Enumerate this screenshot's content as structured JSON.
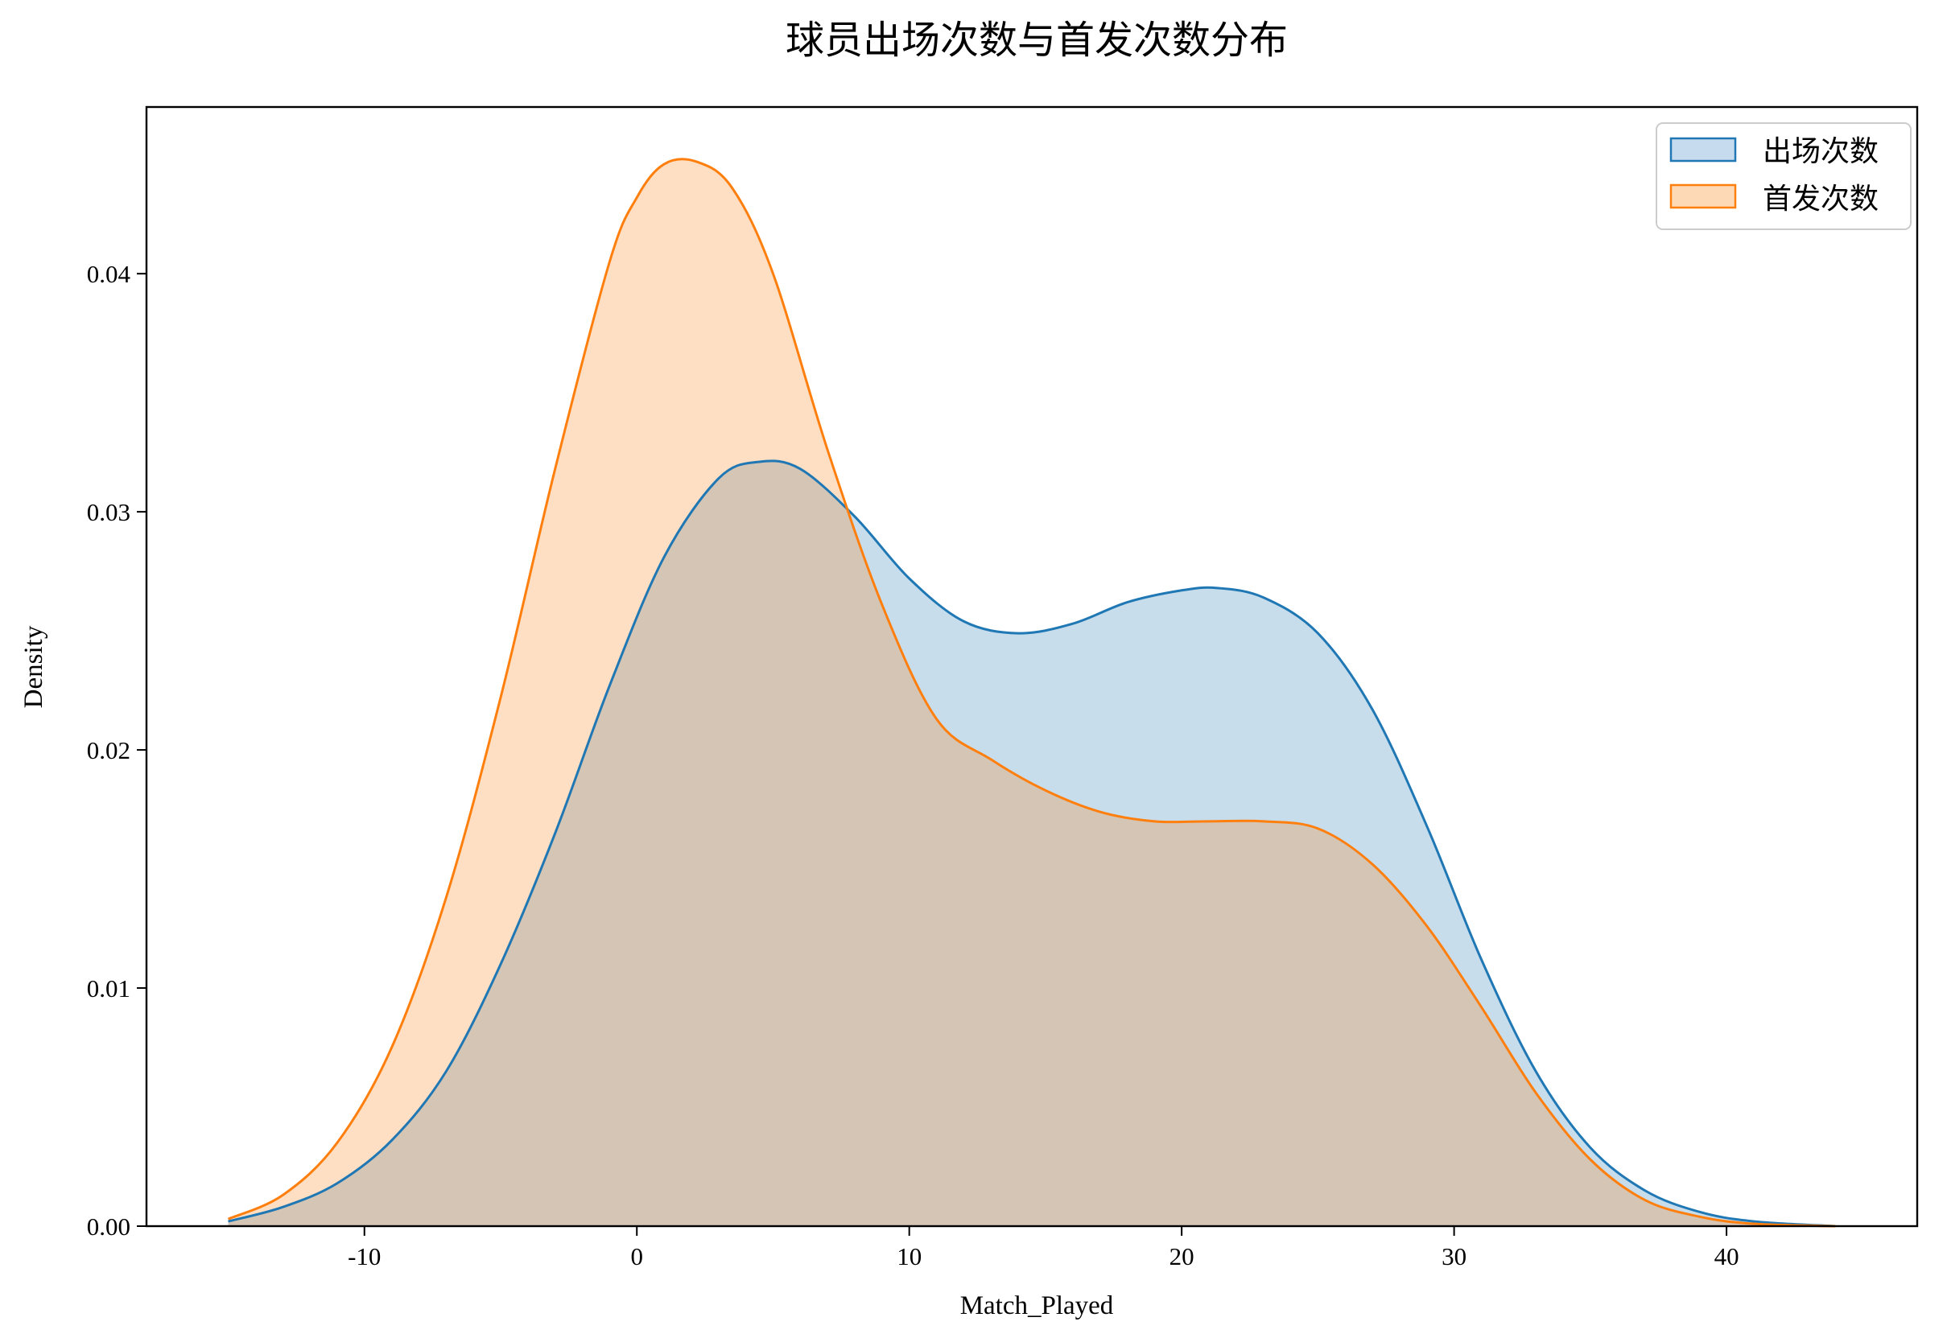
{
  "chart_data": {
    "type": "area",
    "title": "球员出场次数与首发次数分布",
    "xlabel": "Match_Played",
    "ylabel": "Density",
    "xlim": [
      -18.0,
      47.0
    ],
    "ylim": [
      0.0,
      0.047
    ],
    "x_ticks": [
      -10,
      0,
      10,
      20,
      30,
      40
    ],
    "x_tick_labels": [
      "-10",
      "0",
      "10",
      "20",
      "30",
      "40"
    ],
    "y_ticks": [
      0.0,
      0.01,
      0.02,
      0.03,
      0.04
    ],
    "y_tick_labels": [
      "0.00",
      "0.01",
      "0.02",
      "0.03",
      "0.04"
    ],
    "grid": false,
    "legend": "top-right",
    "series": [
      {
        "name": "出场次数",
        "color": "#1f77b4",
        "fill": "#c6dcee",
        "x": [
          -15,
          -13,
          -11,
          -9,
          -7,
          -5,
          -3,
          -1,
          1,
          3,
          4.5,
          6,
          8,
          10,
          12,
          14,
          16,
          18,
          20,
          21.3,
          23,
          25,
          27,
          29,
          31,
          33,
          35,
          37,
          39,
          41,
          44
        ],
        "y": [
          0.0002,
          0.0008,
          0.0018,
          0.0036,
          0.0065,
          0.011,
          0.0165,
          0.0227,
          0.0281,
          0.0314,
          0.0321,
          0.0318,
          0.0298,
          0.0272,
          0.0254,
          0.0249,
          0.0253,
          0.0262,
          0.0267,
          0.0268,
          0.0264,
          0.0249,
          0.0217,
          0.0168,
          0.0112,
          0.0065,
          0.0033,
          0.0015,
          0.0006,
          0.0002,
          0.0
        ]
      },
      {
        "name": "首发次数",
        "color": "#ff7f0e",
        "fill": "#fdd9b5",
        "x": [
          -15,
          -13,
          -11,
          -9,
          -7,
          -5,
          -3,
          -1,
          0,
          1,
          2.2,
          3.5,
          5,
          7,
          9,
          11,
          13,
          15,
          17,
          19,
          21,
          23,
          25,
          27,
          29,
          31,
          33,
          35,
          37,
          39,
          41,
          44
        ],
        "y": [
          0.0003,
          0.0013,
          0.0035,
          0.0075,
          0.0138,
          0.0222,
          0.0318,
          0.0405,
          0.0432,
          0.0446,
          0.0447,
          0.0436,
          0.04,
          0.0326,
          0.0261,
          0.0213,
          0.0196,
          0.0183,
          0.0174,
          0.017,
          0.017,
          0.017,
          0.0167,
          0.0152,
          0.0126,
          0.0092,
          0.0056,
          0.0028,
          0.0011,
          0.0004,
          0.0001,
          0.0
        ]
      }
    ]
  }
}
